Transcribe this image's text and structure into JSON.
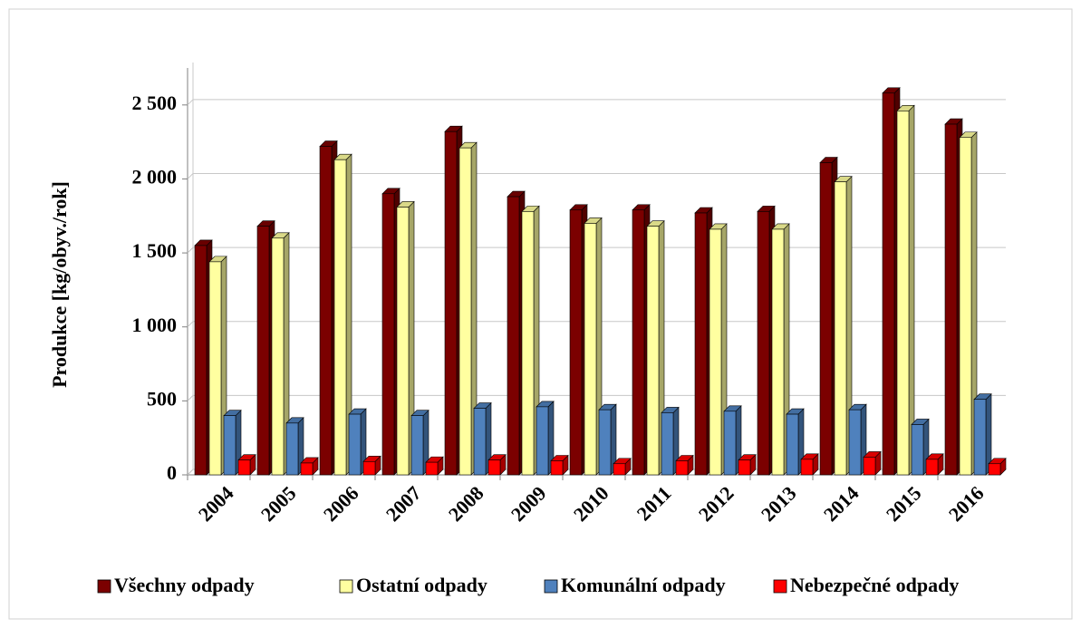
{
  "chart_data": {
    "type": "bar",
    "ylabel": "Produkce [kg/obyv./rok]",
    "categories": [
      "2004",
      "2005",
      "2006",
      "2007",
      "2008",
      "2009",
      "2010",
      "2011",
      "2012",
      "2013",
      "2014",
      "2015",
      "2016"
    ],
    "series": [
      {
        "name": "Všechny odpady",
        "color": "#7b0000",
        "values": [
          1550,
          1680,
          2220,
          1900,
          2320,
          1880,
          1790,
          1790,
          1770,
          1780,
          2110,
          2580,
          2370
        ]
      },
      {
        "name": "Ostatní odpady",
        "color": "#ffffa0",
        "values": [
          1440,
          1600,
          2130,
          1810,
          2210,
          1780,
          1700,
          1680,
          1660,
          1660,
          1980,
          2460,
          2280
        ]
      },
      {
        "name": "Komunální odpady",
        "color": "#4f81bd",
        "values": [
          400,
          350,
          410,
          400,
          450,
          460,
          440,
          420,
          430,
          410,
          440,
          340,
          510
        ]
      },
      {
        "name": "Nebezpečné odpady",
        "color": "#ff0000",
        "values": [
          100,
          80,
          90,
          85,
          100,
          95,
          75,
          95,
          100,
          105,
          120,
          105,
          75
        ]
      }
    ],
    "ylim": [
      0,
      2750
    ],
    "yticks": [
      0,
      500,
      {
        "value": 1000,
        "label": "1 000"
      },
      {
        "value": 1500,
        "label": "1 500"
      },
      {
        "value": 2000,
        "label": "2 000"
      },
      {
        "value": 2500,
        "label": "2 500"
      }
    ],
    "grid": true,
    "legend": "bottom"
  }
}
